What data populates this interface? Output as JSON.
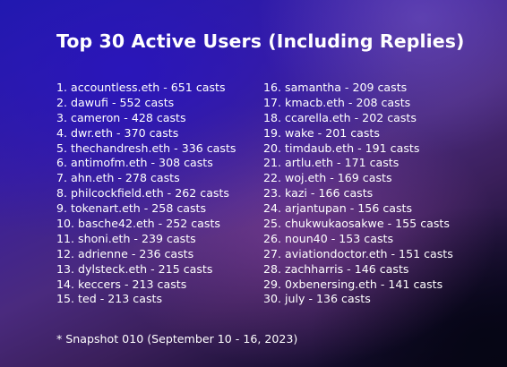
{
  "title": "Top 30 Active Users (Including Replies)",
  "users_left": [
    "1. accountless.eth - 651 casts",
    "2. dawufi - 552 casts",
    "3. cameron - 428 casts",
    "4. dwr.eth - 370 casts",
    "5. thechandresh.eth - 336 casts",
    "6. antimofm.eth - 308 casts",
    "7. ahn.eth - 278 casts",
    "8. philcockfield.eth - 262 casts",
    "9. tokenart.eth - 258 casts",
    "10. basche42.eth - 252 casts",
    "11. shoni.eth - 239 casts",
    "12. adrienne - 236 casts",
    "13. dylsteck.eth - 215 casts",
    "14. keccers - 213 casts",
    "15. ted - 213 casts"
  ],
  "users_right": [
    "16. samantha - 209 casts",
    "17. kmacb.eth - 208 casts",
    "18. ccarella.eth - 202 casts",
    "19. wake - 201 casts",
    "20. timdaub.eth - 191 casts",
    "21. artlu.eth - 171 casts",
    "22. woj.eth - 169 casts",
    "23. kazi - 166 casts",
    "24. arjantupan - 156 casts",
    "25. chukwukaosakwe - 155 casts",
    "26. noun40 - 153 casts",
    "27. aviationdoctor.eth - 151 casts",
    "28. zachharris - 146 casts",
    "29. 0xbenersing.eth - 141 casts",
    "30. july - 136 casts"
  ],
  "footnote": "* Snapshot 010 (September 10 - 16, 2023)"
}
